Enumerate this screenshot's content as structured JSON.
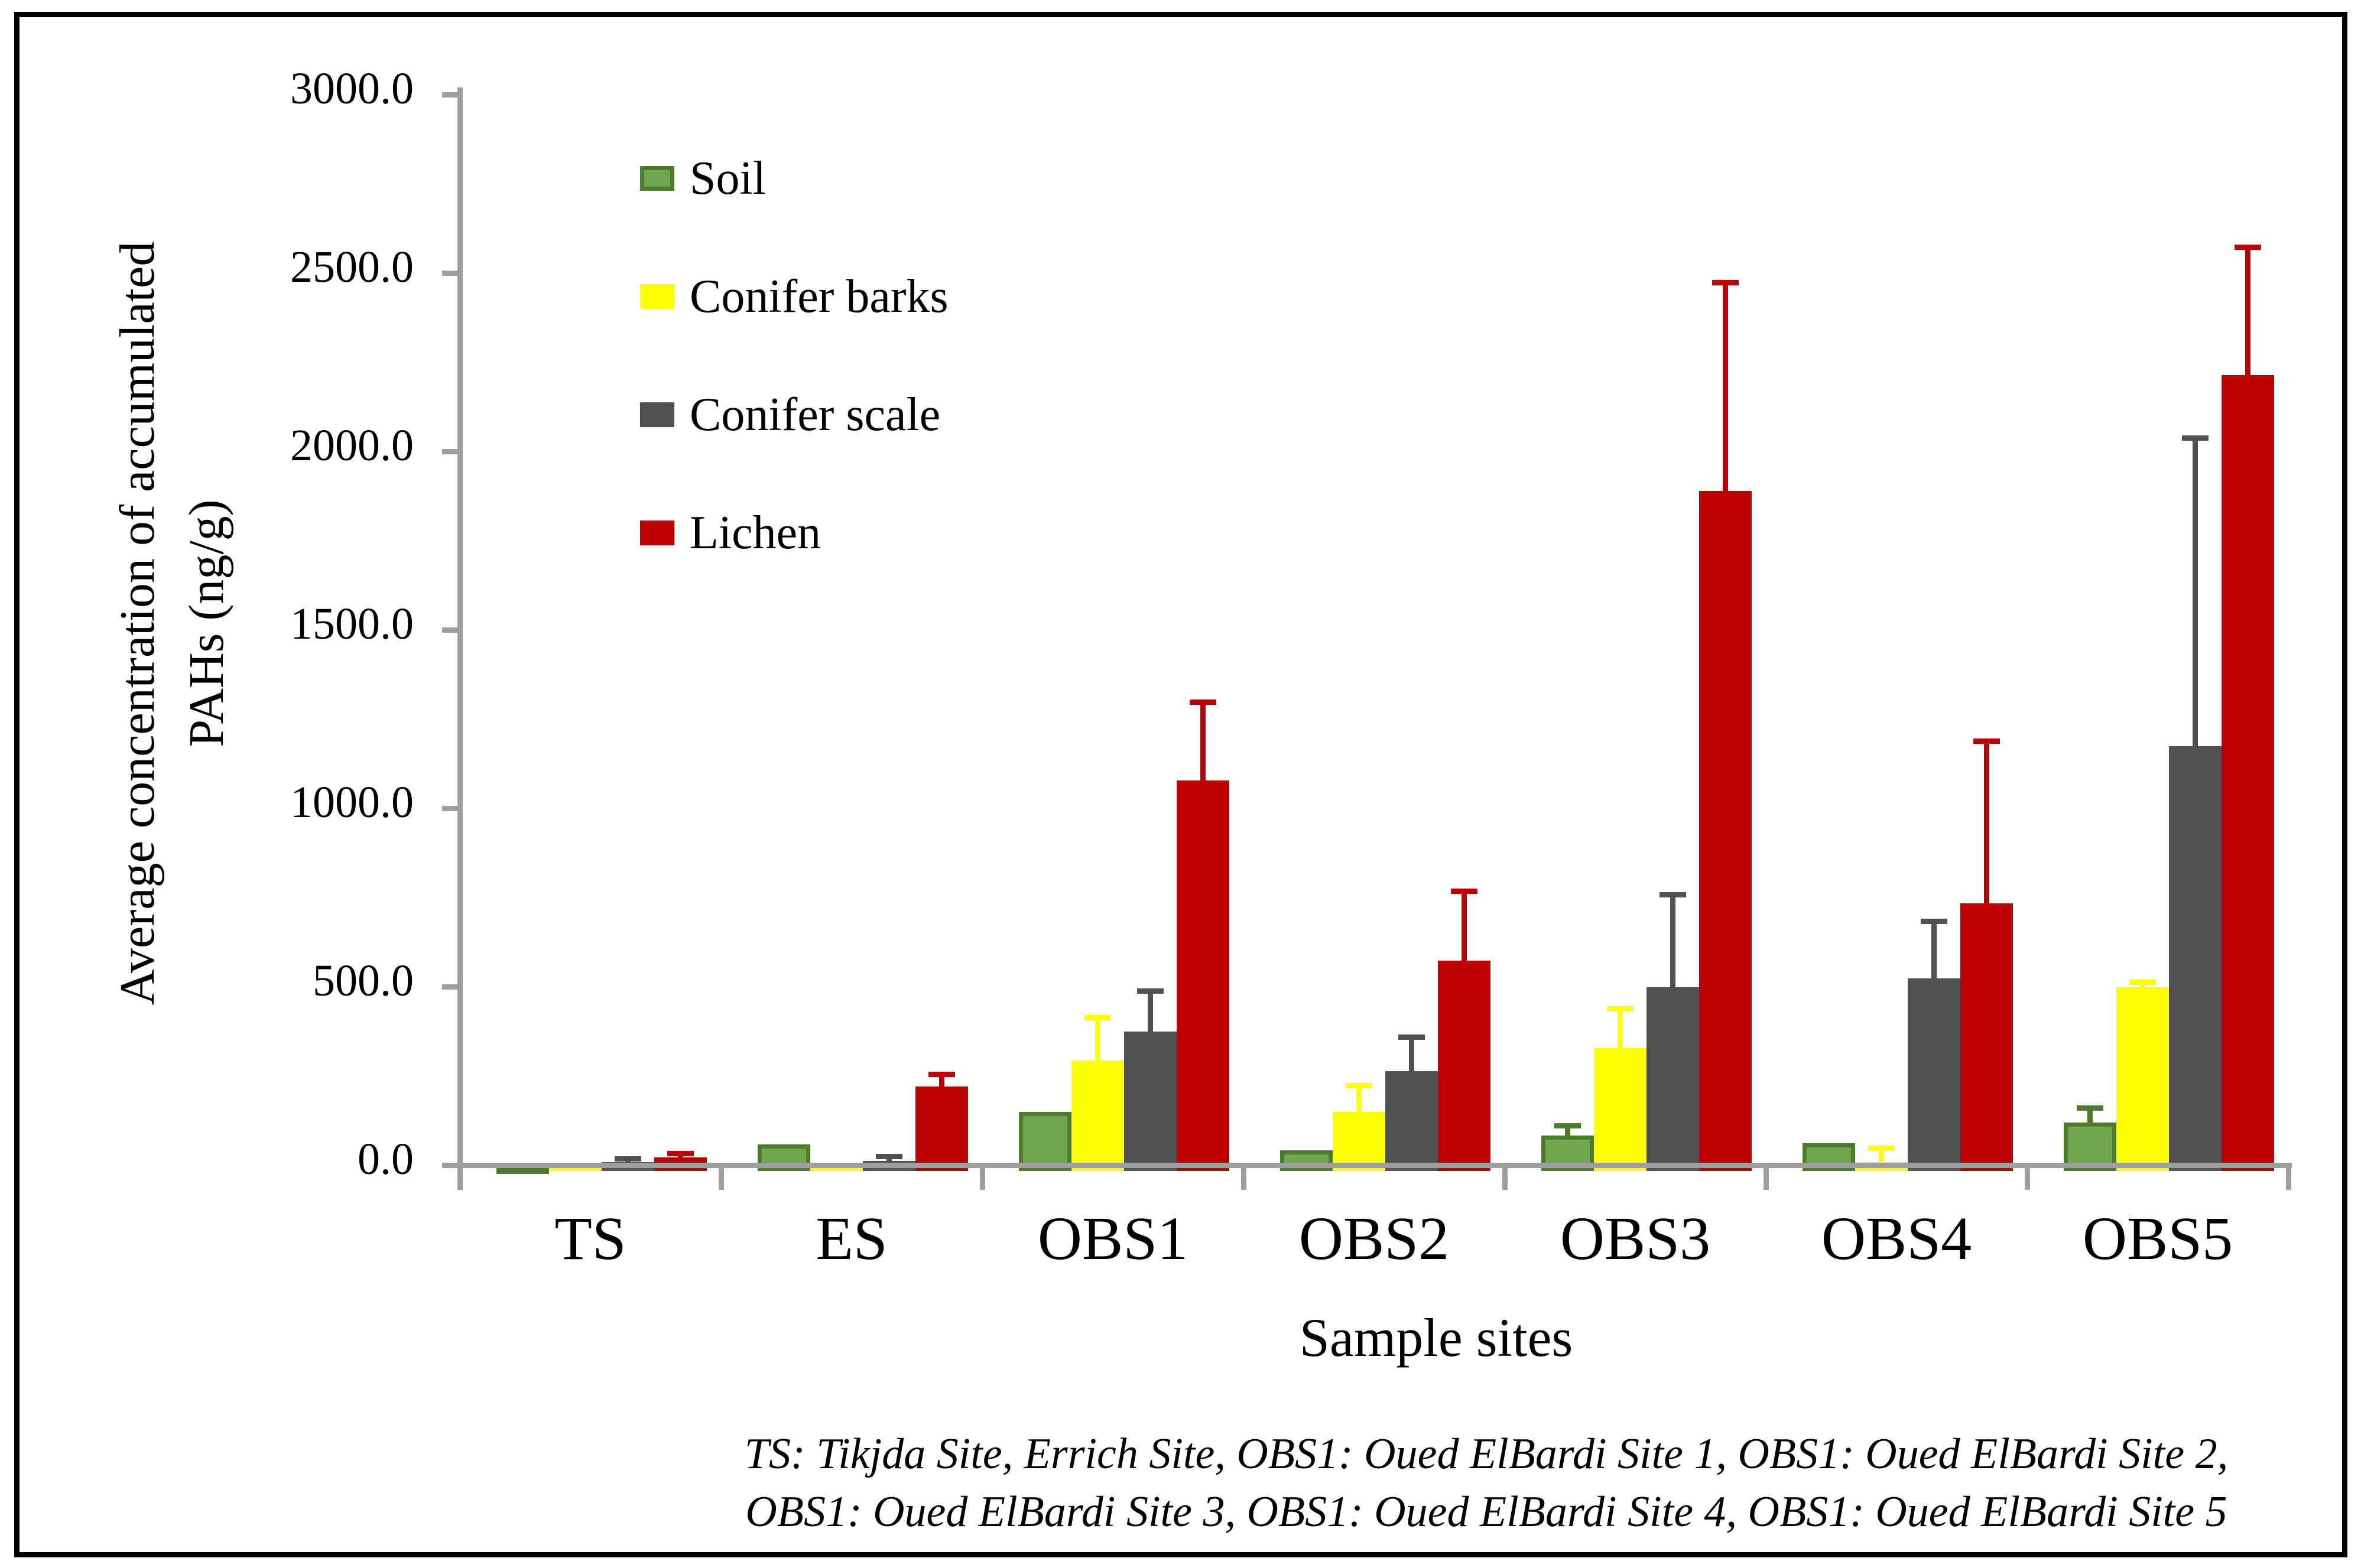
{
  "figure": {
    "y_axis": {
      "title_line1": "Average concentration of accumulated",
      "title_line2": "PAHs (ng/g)",
      "tick_labels": [
        "0.0",
        "500.0",
        "1000.0",
        "1500.0",
        "2000.0",
        "2500.0",
        "3000.0"
      ]
    },
    "x_axis": {
      "title": "Sample sites"
    },
    "caption_line1": "TS: Tikjda Site, Errich Site, OBS1: Oued ElBardi Site 1, OBS1: Oued ElBardi Site 2,",
    "caption_line2": "OBS1: Oued ElBardi Site 3, OBS1: Oued ElBardi Site 4, OBS1: Oued ElBardi Site 5",
    "colors": {
      "axis": "#9e9e9e",
      "soil_fill": "#6fa84c",
      "soil_border": "#4e7a2e",
      "conifer_barks": "#ffff00",
      "conifer_scale": "#515151",
      "lichen": "#c00000"
    }
  },
  "chart_data": {
    "type": "bar",
    "title": "",
    "xlabel": "Sample sites",
    "ylabel": "Average concentration of accumulated PAHs (ng/g)",
    "ylim": [
      0,
      3000
    ],
    "ytick_step": 500,
    "grid": false,
    "error_bars": true,
    "legend_position": "upper-left-inside",
    "categories": [
      "TS",
      "ES",
      "OBS1",
      "OBS2",
      "OBS3",
      "OBS4",
      "OBS5"
    ],
    "series": [
      {
        "name": "Soil",
        "color": "#6fa84c",
        "border_color": "#4e7a2e",
        "values": [
          15,
          75,
          165,
          58,
          100,
          78,
          135
        ],
        "errors": [
          0,
          0,
          0,
          0,
          28,
          0,
          42
        ]
      },
      {
        "name": "Conifer barks",
        "color": "#ffff00",
        "border_color": "",
        "values": [
          8,
          18,
          310,
          165,
          345,
          25,
          515
        ],
        "errors": [
          0,
          0,
          120,
          75,
          110,
          40,
          15
        ]
      },
      {
        "name": "Conifer scale",
        "color": "#515151",
        "border_color": "",
        "values": [
          25,
          28,
          390,
          280,
          515,
          540,
          1190
        ],
        "errors": [
          10,
          14,
          115,
          95,
          260,
          160,
          865
        ]
      },
      {
        "name": "Lichen",
        "color": "#c00000",
        "border_color": "",
        "values": [
          38,
          237,
          1095,
          590,
          1905,
          750,
          2230
        ],
        "errors": [
          12,
          35,
          220,
          195,
          585,
          455,
          360
        ]
      }
    ]
  }
}
